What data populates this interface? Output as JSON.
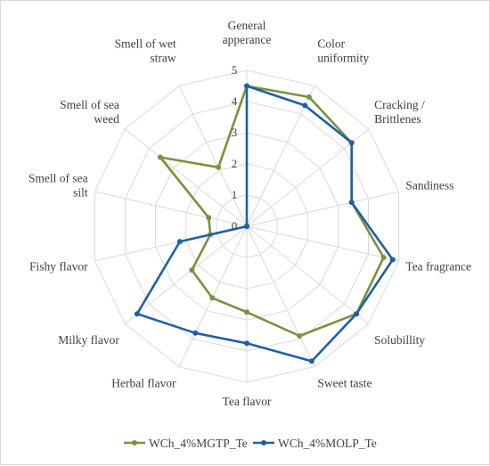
{
  "chart_data": {
    "type": "radar",
    "categories": [
      [
        "General",
        "apperance"
      ],
      [
        "Color",
        "uniformity"
      ],
      [
        "Cracking /",
        "Brittlenes"
      ],
      [
        "Sandiness"
      ],
      [
        "Tea fragrance"
      ],
      [
        "Solubillity"
      ],
      [
        "Sweet taste"
      ],
      [
        "Tea flavor"
      ],
      [
        "Herbal flavor"
      ],
      [
        "Milky flavor"
      ],
      [
        "Fishy flavor"
      ],
      [
        "Smell of sea",
        "silt"
      ],
      [
        "Smell of sea",
        "weed"
      ],
      [
        "Smell of wet",
        "straw"
      ]
    ],
    "rlim": [
      0,
      5
    ],
    "ticks": [
      "0",
      "1",
      "2",
      "3",
      "4",
      "5"
    ],
    "grid": true,
    "legend_position": "bottom",
    "series": [
      {
        "name": "WCh_4%MGTP_Te",
        "color": "#77933c",
        "values": [
          4.5,
          4.6,
          4.3,
          3.45,
          4.5,
          4.5,
          3.9,
          2.75,
          2.55,
          2.25,
          1.2,
          1.25,
          3.55,
          2.1
        ]
      },
      {
        "name": "WCh_4%MOLP_Te",
        "color": "#1f5fa8",
        "values": [
          4.5,
          4.3,
          4.3,
          3.45,
          4.8,
          4.5,
          4.8,
          3.75,
          3.8,
          4.5,
          2.2,
          0,
          0,
          0
        ]
      }
    ]
  }
}
